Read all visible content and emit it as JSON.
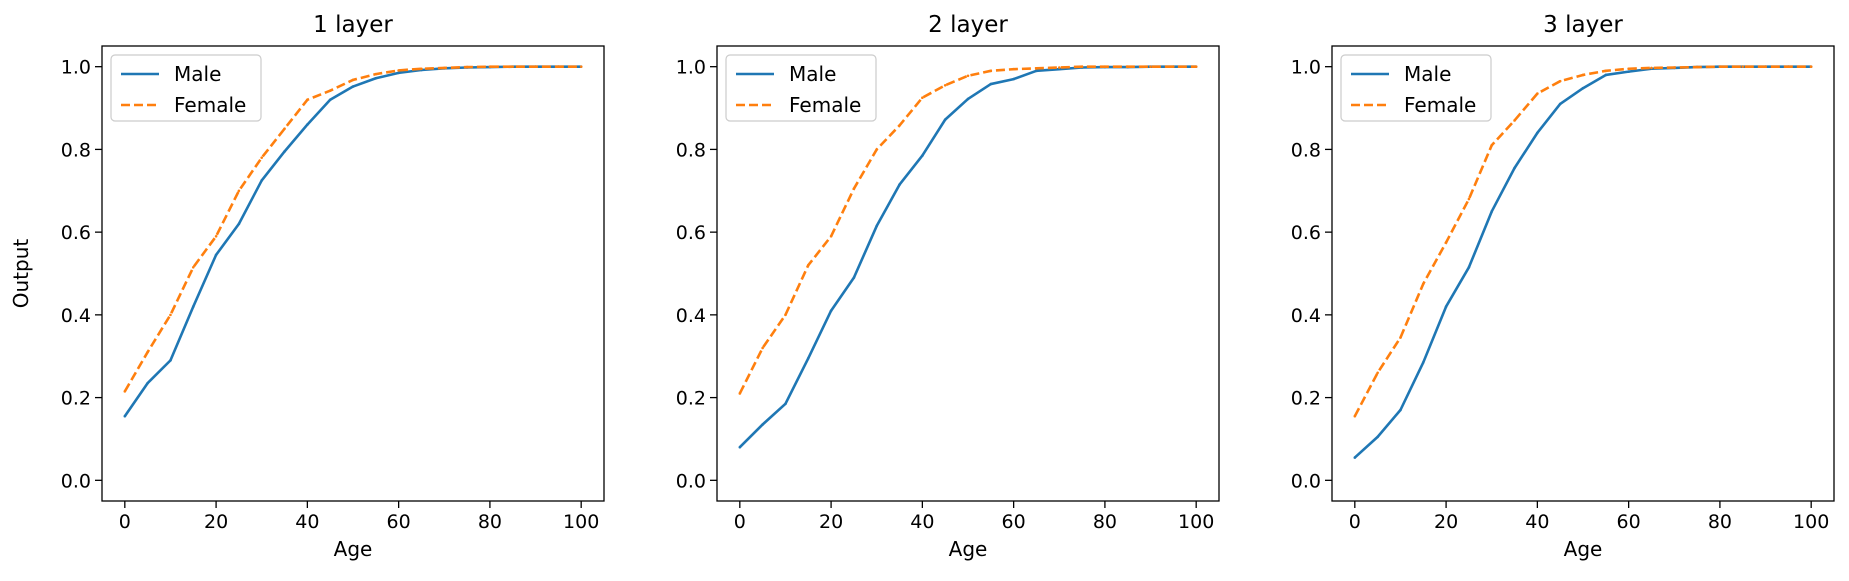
{
  "chart_data": [
    {
      "type": "line",
      "title": "1 layer",
      "xlabel": "Age",
      "ylabel": "Output",
      "xlim": [
        -5,
        105
      ],
      "ylim": [
        -0.05,
        1.05
      ],
      "xticks": [
        0,
        20,
        40,
        60,
        80,
        100
      ],
      "yticks": [
        0.0,
        0.2,
        0.4,
        0.6,
        0.8,
        1.0
      ],
      "xtick_labels": [
        "0",
        "20",
        "40",
        "60",
        "80",
        "100"
      ],
      "ytick_labels": [
        "0.0",
        "0.2",
        "0.4",
        "0.6",
        "0.8",
        "1.0"
      ],
      "grid": false,
      "legend": "upper-left",
      "x": [
        0,
        5,
        10,
        15,
        20,
        25,
        30,
        35,
        40,
        45,
        50,
        55,
        60,
        65,
        70,
        75,
        80,
        85,
        90,
        95,
        100
      ],
      "series": [
        {
          "name": "Male",
          "color": "#1f77b4",
          "style": "solid",
          "values": [
            0.155,
            0.235,
            0.29,
            0.42,
            0.545,
            0.62,
            0.725,
            0.795,
            0.86,
            0.92,
            0.952,
            0.972,
            0.985,
            0.992,
            0.996,
            0.998,
            0.999,
            1.0,
            1.0,
            1.0,
            1.0
          ]
        },
        {
          "name": "Female",
          "color": "#ff7f0e",
          "style": "dashed",
          "values": [
            0.215,
            0.31,
            0.4,
            0.515,
            0.59,
            0.7,
            0.78,
            0.85,
            0.92,
            0.942,
            0.968,
            0.982,
            0.991,
            0.995,
            0.997,
            0.999,
            1.0,
            1.0,
            1.0,
            1.0,
            1.0
          ]
        }
      ]
    },
    {
      "type": "line",
      "title": "2 layer",
      "xlabel": "Age",
      "ylabel": "",
      "xlim": [
        -5,
        105
      ],
      "ylim": [
        -0.05,
        1.05
      ],
      "xticks": [
        0,
        20,
        40,
        60,
        80,
        100
      ],
      "yticks": [
        0.0,
        0.2,
        0.4,
        0.6,
        0.8,
        1.0
      ],
      "xtick_labels": [
        "0",
        "20",
        "40",
        "60",
        "80",
        "100"
      ],
      "ytick_labels": [
        "0.0",
        "0.2",
        "0.4",
        "0.6",
        "0.8",
        "1.0"
      ],
      "grid": false,
      "legend": "upper-left",
      "x": [
        0,
        5,
        10,
        15,
        20,
        25,
        30,
        35,
        40,
        45,
        50,
        55,
        60,
        65,
        70,
        75,
        80,
        85,
        90,
        95,
        100
      ],
      "series": [
        {
          "name": "Male",
          "color": "#1f77b4",
          "style": "solid",
          "values": [
            0.08,
            0.135,
            0.185,
            0.295,
            0.41,
            0.49,
            0.615,
            0.715,
            0.785,
            0.872,
            0.922,
            0.958,
            0.97,
            0.99,
            0.994,
            0.998,
            0.999,
            0.999,
            1.0,
            1.0,
            1.0
          ]
        },
        {
          "name": "Female",
          "color": "#ff7f0e",
          "style": "dashed",
          "values": [
            0.21,
            0.32,
            0.4,
            0.52,
            0.59,
            0.705,
            0.8,
            0.858,
            0.925,
            0.955,
            0.978,
            0.99,
            0.994,
            0.996,
            0.998,
            1.0,
            1.0,
            1.0,
            1.0,
            1.0,
            1.0
          ]
        }
      ]
    },
    {
      "type": "line",
      "title": "3 layer",
      "xlabel": "Age",
      "ylabel": "",
      "xlim": [
        -5,
        105
      ],
      "ylim": [
        -0.05,
        1.05
      ],
      "xticks": [
        0,
        20,
        40,
        60,
        80,
        100
      ],
      "yticks": [
        0.0,
        0.2,
        0.4,
        0.6,
        0.8,
        1.0
      ],
      "xtick_labels": [
        "0",
        "20",
        "40",
        "60",
        "80",
        "100"
      ],
      "ytick_labels": [
        "0.0",
        "0.2",
        "0.4",
        "0.6",
        "0.8",
        "1.0"
      ],
      "grid": false,
      "legend": "upper-left",
      "x": [
        0,
        5,
        10,
        15,
        20,
        25,
        30,
        35,
        40,
        45,
        50,
        55,
        60,
        65,
        70,
        75,
        80,
        85,
        90,
        95,
        100
      ],
      "series": [
        {
          "name": "Male",
          "color": "#1f77b4",
          "style": "solid",
          "values": [
            0.055,
            0.105,
            0.17,
            0.285,
            0.42,
            0.515,
            0.65,
            0.755,
            0.84,
            0.91,
            0.948,
            0.98,
            0.988,
            0.995,
            0.997,
            0.999,
            1.0,
            1.0,
            1.0,
            1.0,
            1.0
          ]
        },
        {
          "name": "Female",
          "color": "#ff7f0e",
          "style": "dashed",
          "values": [
            0.155,
            0.26,
            0.345,
            0.475,
            0.575,
            0.68,
            0.81,
            0.87,
            0.935,
            0.965,
            0.98,
            0.99,
            0.995,
            0.997,
            0.998,
            0.999,
            1.0,
            1.0,
            1.0,
            1.0,
            1.0
          ]
        }
      ]
    }
  ]
}
